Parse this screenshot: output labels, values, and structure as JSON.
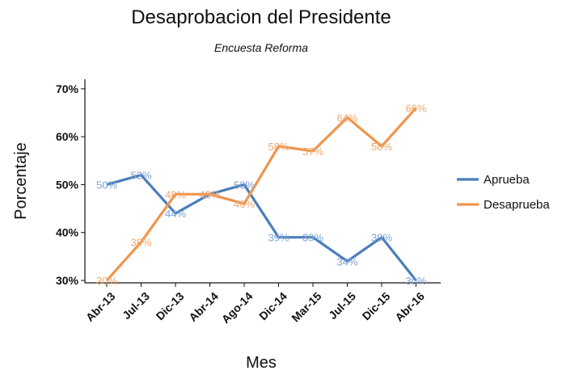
{
  "chart_data": {
    "type": "line",
    "title": "Desaprobacion del Presidente",
    "subtitle": "Encuesta Reforma",
    "xlabel": "Mes",
    "ylabel": "Porcentaje",
    "categories": [
      "Abr-13",
      "Jul-13",
      "Dic-13",
      "Abr-14",
      "Ago-14",
      "Dic-14",
      "Mar-15",
      "Jul-15",
      "Dic-15",
      "Abr-16"
    ],
    "ylim": [
      29.5,
      72
    ],
    "yticks": [
      30,
      40,
      50,
      60,
      70
    ],
    "ytick_labels": [
      "30%",
      "40%",
      "50%",
      "60%",
      "70%"
    ],
    "grid": false,
    "legend_position": "right",
    "series": [
      {
        "name": "Aprueba",
        "color": "#4a7ebb",
        "label_color": "#7ba3d6",
        "values": [
          50,
          52,
          44,
          48,
          50,
          39,
          39,
          34,
          39,
          30
        ],
        "labels": [
          "50%",
          "52%",
          "44%",
          "48%",
          "50%",
          "39%",
          "39%",
          "34%",
          "39%",
          "30%"
        ]
      },
      {
        "name": "Desaprueba",
        "color": "#f0954a",
        "label_color": "#f0a870",
        "values": [
          30,
          38,
          48,
          48,
          46,
          58,
          57,
          64,
          58,
          66
        ],
        "labels": [
          "30%",
          "38%",
          "48%",
          "48%",
          "46%",
          "58%",
          "57%",
          "64%",
          "58%",
          "66%"
        ]
      }
    ]
  }
}
